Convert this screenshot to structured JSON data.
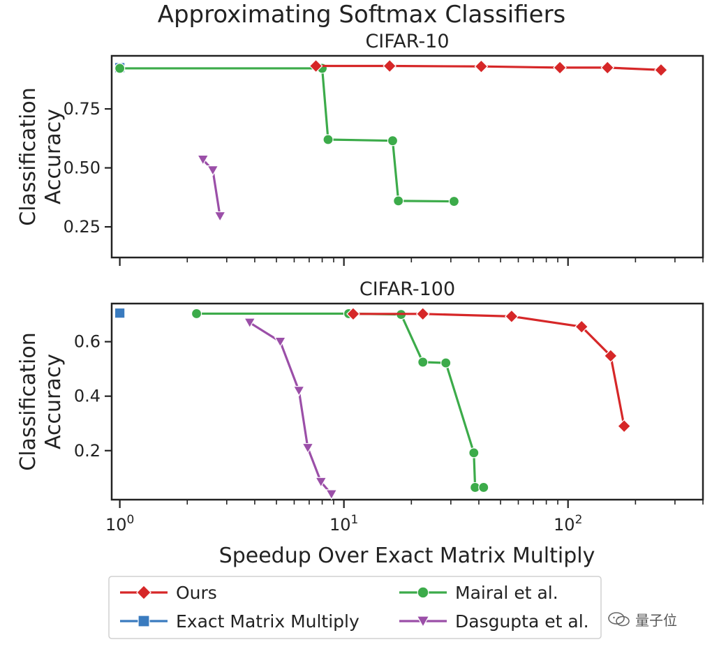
{
  "figure": {
    "title": "Approximating Softmax Classifiers",
    "xlabel": "Speedup Over Exact Matrix Multiply",
    "watermark_text": "量子位"
  },
  "colors": {
    "ours": "#d62728",
    "exact": "#3a7bbf",
    "mairal": "#3cab4a",
    "dasgupta": "#9b4fa8"
  },
  "legend": {
    "placement": "bottom",
    "entries": [
      {
        "name": "Ours",
        "marker": "diamond",
        "color_key": "ours"
      },
      {
        "name": "Mairal et al.",
        "marker": "circle",
        "color_key": "mairal"
      },
      {
        "name": "Exact Matrix Multiply",
        "marker": "square",
        "color_key": "exact"
      },
      {
        "name": "Dasgupta et al.",
        "marker": "triangle-down",
        "color_key": "dasgupta"
      }
    ]
  },
  "chart_data": [
    {
      "type": "line",
      "title": "CIFAR-10",
      "xlabel": "",
      "ylabel": "Classification\nAccuracy",
      "xscale": "log",
      "xlim": [
        0.92,
        400
      ],
      "ylim": [
        0.12,
        0.975
      ],
      "yticks": [
        0.25,
        0.5,
        0.75
      ],
      "yticklabels": [
        "0.25",
        "0.50",
        "0.75"
      ],
      "xtick_labels_shown": false,
      "series": [
        {
          "name": "Exact Matrix Multiply",
          "marker": "square",
          "color_key": "exact",
          "x": [
            1
          ],
          "y": [
            0.925
          ]
        },
        {
          "name": "Mairal et al.",
          "marker": "circle",
          "color_key": "mairal",
          "x": [
            1,
            8.0,
            8.5,
            16.5,
            17.5,
            31
          ],
          "y": [
            0.922,
            0.922,
            0.62,
            0.615,
            0.36,
            0.358
          ]
        },
        {
          "name": "Dasgupta et al.",
          "marker": "triangle-down",
          "color_key": "dasgupta",
          "x": [
            2.35,
            2.6,
            2.8
          ],
          "y": [
            0.535,
            0.49,
            0.295
          ]
        },
        {
          "name": "Ours",
          "marker": "diamond",
          "color_key": "ours",
          "x": [
            7.5,
            16,
            41,
            92,
            150,
            260
          ],
          "y": [
            0.932,
            0.932,
            0.93,
            0.925,
            0.925,
            0.915
          ]
        }
      ]
    },
    {
      "type": "line",
      "title": "CIFAR-100",
      "xlabel": "Speedup Over Exact Matrix Multiply",
      "ylabel": "Classification\nAccuracy",
      "xscale": "log",
      "xlim": [
        0.92,
        400
      ],
      "ylim": [
        0.02,
        0.74
      ],
      "yticks": [
        0.2,
        0.4,
        0.6
      ],
      "yticklabels": [
        "0.2",
        "0.4",
        "0.6"
      ],
      "xticks": [
        1,
        10,
        100
      ],
      "xticklabels": [
        "10^0",
        "10^1",
        "10^2"
      ],
      "series": [
        {
          "name": "Exact Matrix Multiply",
          "marker": "square",
          "color_key": "exact",
          "x": [
            1
          ],
          "y": [
            0.705
          ]
        },
        {
          "name": "Mairal et al.",
          "marker": "circle",
          "color_key": "mairal",
          "x": [
            2.2,
            10.5,
            18,
            22.5,
            28.5,
            38,
            38.5,
            42
          ],
          "y": [
            0.703,
            0.703,
            0.7,
            0.525,
            0.522,
            0.192,
            0.065,
            0.065
          ]
        },
        {
          "name": "Dasgupta et al.",
          "marker": "triangle-down",
          "color_key": "dasgupta",
          "x": [
            3.8,
            5.2,
            6.3,
            6.9,
            7.9,
            8.8
          ],
          "y": [
            0.67,
            0.6,
            0.42,
            0.21,
            0.085,
            0.04
          ]
        },
        {
          "name": "Ours",
          "marker": "diamond",
          "color_key": "ours",
          "x": [
            11,
            22.5,
            56,
            115,
            155,
            178
          ],
          "y": [
            0.702,
            0.702,
            0.693,
            0.655,
            0.548,
            0.29
          ]
        }
      ]
    }
  ]
}
